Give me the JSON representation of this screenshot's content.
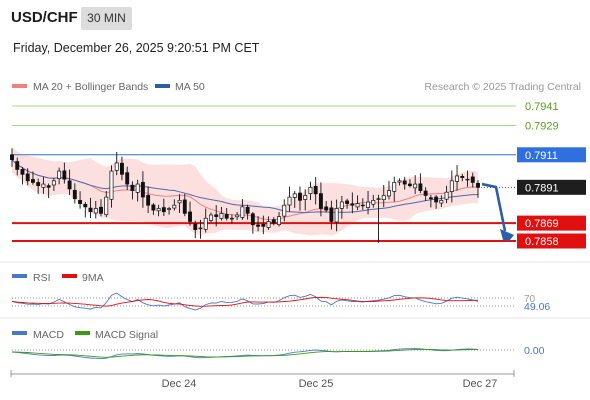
{
  "header": {
    "symbol": "USD/CHF",
    "timeframe": "30 MIN",
    "datetime": "Friday, December 26, 2025 9:20:51 PM CET"
  },
  "legend": {
    "items": [
      {
        "label": "MA 20 + Bollinger Bands",
        "color": "#f08080"
      },
      {
        "label": "MA 50",
        "color": "#2c5f9e"
      }
    ],
    "attribution": "Research © 2025 Trading Central"
  },
  "chart_data": {
    "type": "candlestick",
    "ylim": [
      0.7848,
      0.795
    ],
    "levels": [
      {
        "value": 0.7941,
        "label": "0.7941",
        "kind": "resistance-green",
        "color": "#5a9e1e"
      },
      {
        "value": 0.7929,
        "label": "0.7929",
        "kind": "resistance-green",
        "color": "#5a9e1e"
      },
      {
        "value": 0.7911,
        "label": "0.7911",
        "kind": "pivot",
        "color": "#2f6fe0"
      },
      {
        "value": 0.7891,
        "label": "0.7891",
        "kind": "last-price",
        "color": "#222222"
      },
      {
        "value": 0.7869,
        "label": "0.7869",
        "kind": "support-red",
        "color": "#e01010"
      },
      {
        "value": 0.7858,
        "label": "0.7858",
        "kind": "support-red",
        "color": "#e01010"
      }
    ],
    "forecast": {
      "from": 0.7893,
      "to": 0.7861,
      "direction": "down"
    },
    "x_ticks": [
      "Dec 24",
      "Dec 25",
      "Dec 27"
    ],
    "candles_close": [
      0.7908,
      0.7902,
      0.7899,
      0.7895,
      0.7894,
      0.7892,
      0.7893,
      0.7891,
      0.7895,
      0.7901,
      0.7896,
      0.789,
      0.7884,
      0.7881,
      0.7879,
      0.7876,
      0.7878,
      0.7875,
      0.7885,
      0.7901,
      0.7906,
      0.7899,
      0.7893,
      0.7889,
      0.7893,
      0.7885,
      0.788,
      0.7877,
      0.7878,
      0.7876,
      0.7878,
      0.788,
      0.7883,
      0.7875,
      0.787,
      0.7865,
      0.7866,
      0.7872,
      0.7874,
      0.7873,
      0.7875,
      0.7872,
      0.7872,
      0.7874,
      0.7879,
      0.7875,
      0.7868,
      0.7867,
      0.7867,
      0.787,
      0.7869,
      0.7873,
      0.788,
      0.7885,
      0.7887,
      0.7883,
      0.7886,
      0.7891,
      0.7887,
      0.7878,
      0.7877,
      0.787,
      0.7878,
      0.7882,
      0.7881,
      0.788,
      0.7881,
      0.788,
      0.7882,
      0.7883,
      0.7884,
      0.7886,
      0.7889,
      0.7894,
      0.7895,
      0.7893,
      0.7892,
      0.7893,
      0.7889,
      0.7886,
      0.7884,
      0.7882,
      0.7883,
      0.7888,
      0.7895,
      0.7898,
      0.7897,
      0.7896,
      0.7894,
      0.7891
    ],
    "rsi": {
      "name": "RSI",
      "signal_name": "9MA",
      "level": 70,
      "level_label": "70",
      "value": 49.06,
      "value_label": "49.06"
    },
    "macd": {
      "name": "MACD",
      "signal_name": "MACD Signal",
      "zero_label": "0.00"
    }
  },
  "indicators": {
    "rsi": {
      "label": "RSI",
      "signal_label": "9MA",
      "line_color": "#4a78c8",
      "signal_color": "#e01010"
    },
    "macd": {
      "label": "MACD",
      "signal_label": "MACD Signal",
      "line_color": "#4a78c8",
      "signal_color": "#3a9a10"
    }
  },
  "colors": {
    "candle": "#111111",
    "band_fill": "#fbdada",
    "ma20": "#f08080",
    "ma50": "#5566aa",
    "arrow": "#2b5fa8"
  }
}
